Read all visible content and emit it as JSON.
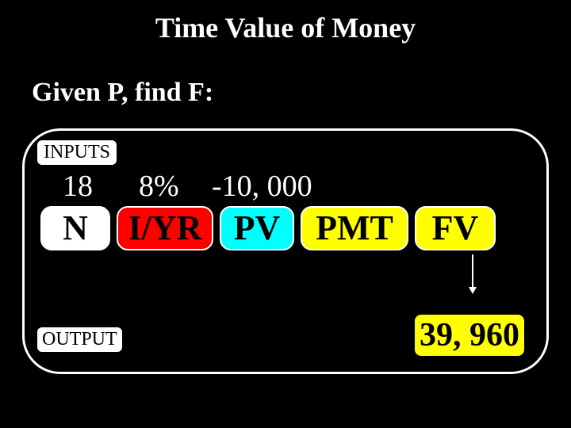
{
  "title": "Time Value of Money",
  "subtitle": "Given P, find F:",
  "labels": {
    "inputs": "INPUTS",
    "output": "OUTPUT"
  },
  "input_values": {
    "n": "18",
    "iyr": "8%",
    "pv": "-10, 000"
  },
  "keys": {
    "n": "N",
    "iyr": "I/YR",
    "pv": "PV",
    "pmt": "PMT",
    "fv": "FV"
  },
  "key_colors": {
    "n": "#ffffff",
    "iyr": "#ff0000",
    "pv": "#00ffff",
    "pmt": "#ffff00",
    "fv": "#ffff00"
  },
  "result": "39, 960",
  "background_color": "#000000",
  "panel_border_color": "#ffffff",
  "text_color": "#ffffff",
  "label_bg": "#ffffff",
  "label_fg": "#000000",
  "result_bg": "#ffff00",
  "result_fg": "#000000",
  "title_fontsize": 36,
  "subtitle_fontsize": 34,
  "key_fontsize": 44,
  "value_fontsize": 38,
  "label_fontsize": 24,
  "result_fontsize": 42
}
